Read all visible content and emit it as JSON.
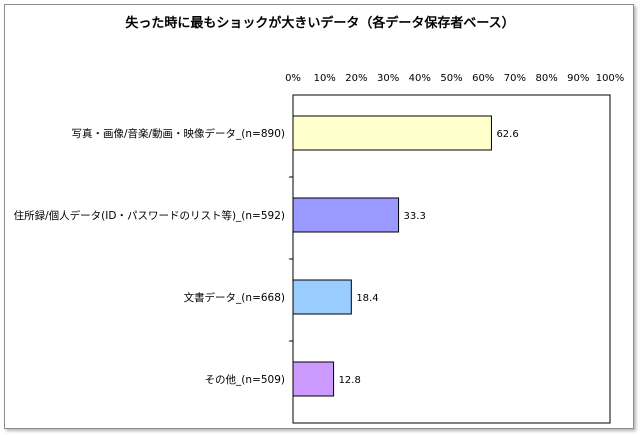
{
  "chart_data": {
    "type": "bar",
    "orientation": "horizontal",
    "title": "失った時に最もショックが大きいデータ（各データ保存者ベース）",
    "categories": [
      "写真・画像/音楽/動画・映像データ_(n=890)",
      "住所録/個人データ(ID・パスワードのリスト等)_(n=592)",
      "文書データ_(n=668)",
      "その他_(n=509)"
    ],
    "values": [
      62.6,
      33.3,
      18.4,
      12.8
    ],
    "value_labels": [
      "62.6",
      "33.3",
      "18.4",
      "12.8"
    ],
    "bar_colors": [
      "#ffffcc",
      "#9999ff",
      "#99ccff",
      "#cc99ff"
    ],
    "xlim": [
      0,
      100
    ],
    "x_ticks": [
      "0%",
      "10%",
      "20%",
      "30%",
      "40%",
      "50%",
      "60%",
      "70%",
      "80%",
      "90%",
      "100%"
    ],
    "x_axis_position": "top",
    "grid": false,
    "xlabel": "",
    "ylabel": ""
  }
}
